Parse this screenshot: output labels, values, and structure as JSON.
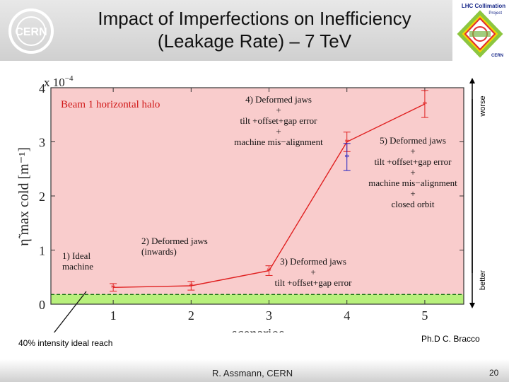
{
  "header": {
    "title_line1": "Impact of Imperfections on Inefficiency",
    "title_line2": "(Leakage Rate) – 7 TeV",
    "logo_left_text": "CERN",
    "logo_right_line1": "LHC Collimation",
    "logo_right_line2": "Project",
    "logo_right_line3": "CERN"
  },
  "footer": {
    "author": "R. Assmann, CERN",
    "page_number": "20",
    "note_left": "40% intensity ideal reach",
    "note_right": "Ph.D C. Bracco"
  },
  "arrow": {
    "top_label": "worse",
    "bottom_label": "better"
  },
  "colors": {
    "plot_bg": "#f9cccc",
    "good_band": "#b8f07c",
    "series": "#e02020",
    "alt_point": "#2020c0",
    "threshold": "#006400"
  },
  "chart_data": {
    "type": "line",
    "title": "Beam 1 horizontal halo",
    "xlabel": "scenarios",
    "ylabel": "η̃ max cold [m⁻¹]",
    "y_multiplier": "x 10",
    "y_multiplier_exp": "−4",
    "xlim": [
      0.2,
      5.5
    ],
    "ylim": [
      0,
      4
    ],
    "x_ticks": [
      1,
      2,
      3,
      4,
      5
    ],
    "y_ticks": [
      0,
      1,
      2,
      3,
      4
    ],
    "x_tick_labels": [
      "1",
      "2",
      "3",
      "4",
      "5"
    ],
    "y_tick_labels": [
      "0",
      "1",
      "2",
      "3",
      "4"
    ],
    "threshold": 0.18,
    "series": [
      {
        "x": [
          1,
          2,
          3,
          4,
          5
        ],
        "y": [
          0.31,
          0.34,
          0.62,
          3.0,
          3.7
        ],
        "err": [
          0.07,
          0.08,
          0.09,
          0.18,
          0.25
        ]
      }
    ],
    "alt_points": [
      {
        "x": 4,
        "y": 2.72,
        "err": 0.25
      }
    ],
    "annotations": [
      {
        "lines": [
          "1) Ideal",
          "machine"
        ]
      },
      {
        "lines": [
          "2) Deformed jaws",
          "(inwards)"
        ]
      },
      {
        "lines": [
          "3) Deformed jaws",
          "+",
          "tilt +offset+gap error"
        ]
      },
      {
        "lines": [
          "4) Deformed jaws",
          "+",
          "tilt +offset+gap error",
          "+",
          "machine mis−alignment"
        ]
      },
      {
        "lines": [
          "5) Deformed jaws",
          "+",
          "tilt +offset+gap error",
          "+",
          "machine mis−alignment",
          "+",
          "closed orbit"
        ]
      }
    ]
  }
}
